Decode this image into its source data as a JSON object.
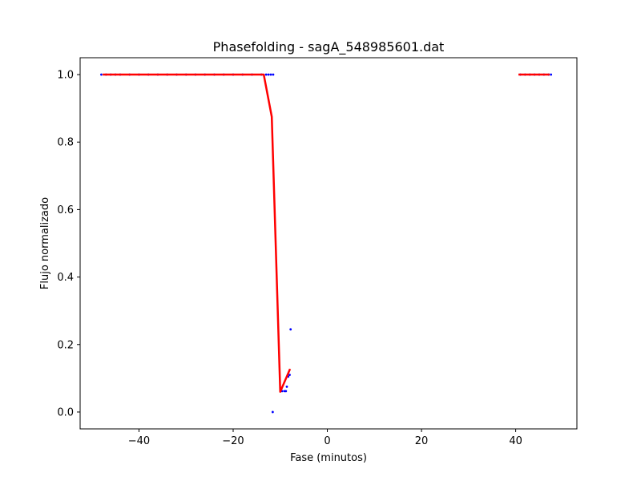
{
  "chart_data": {
    "type": "scatter",
    "title": "Phasefolding - sagA_548985601.dat",
    "xlabel": "Fase (minutos)",
    "ylabel": "Flujo normalizado",
    "xlim": [
      -52.5,
      53
    ],
    "ylim": [
      -0.05,
      1.05
    ],
    "xticks": [
      -40,
      -20,
      0,
      20,
      40
    ],
    "xtick_labels": [
      "−40",
      "−20",
      "0",
      "20",
      "40"
    ],
    "yticks": [
      0.0,
      0.2,
      0.4,
      0.6,
      0.8,
      1.0
    ],
    "ytick_labels": [
      "0.0",
      "0.2",
      "0.4",
      "0.6",
      "0.8",
      "1.0"
    ],
    "grid": false,
    "legend": "none",
    "series": [
      {
        "kind": "scatter",
        "color": "#0000ff",
        "points": [
          [
            -48.0,
            1.0
          ],
          [
            -47.0,
            1.0
          ],
          [
            -46.0,
            1.0
          ],
          [
            -45.0,
            1.0
          ],
          [
            -44.0,
            1.0
          ],
          [
            -42.0,
            1.0
          ],
          [
            -40.0,
            1.0
          ],
          [
            -38.0,
            1.0
          ],
          [
            -36.0,
            1.0
          ],
          [
            -34.0,
            1.0
          ],
          [
            -32.0,
            1.0
          ],
          [
            -30.0,
            1.0
          ],
          [
            -28.0,
            1.0
          ],
          [
            -26.0,
            1.0
          ],
          [
            -24.0,
            1.0
          ],
          [
            -22.0,
            1.0
          ],
          [
            -20.0,
            1.0
          ],
          [
            -18.0,
            1.0
          ],
          [
            -16.0,
            1.0
          ],
          [
            -14.0,
            1.0
          ],
          [
            -13.0,
            1.0
          ],
          [
            -12.5,
            1.0
          ],
          [
            -12.0,
            1.0
          ],
          [
            -11.5,
            1.0
          ],
          [
            -11.6,
            0.0
          ],
          [
            -9.6,
            0.062
          ],
          [
            -9.1,
            0.062
          ],
          [
            -8.8,
            0.062
          ],
          [
            -8.6,
            0.075
          ],
          [
            -8.3,
            0.105
          ],
          [
            -8.0,
            0.11
          ],
          [
            -7.8,
            0.245
          ],
          [
            41.0,
            1.0
          ],
          [
            42.0,
            1.0
          ],
          [
            43.0,
            1.0
          ],
          [
            44.0,
            1.0
          ],
          [
            45.0,
            1.0
          ],
          [
            46.0,
            1.0
          ],
          [
            47.0,
            1.0
          ],
          [
            47.5,
            1.0
          ]
        ]
      },
      {
        "kind": "line",
        "color": "#ff0000",
        "segments": [
          [
            [
              -47.5,
              1.0
            ],
            [
              -13.5,
              1.0
            ],
            [
              -11.8,
              0.875
            ],
            [
              -10.0,
              0.06
            ],
            [
              -8.0,
              0.125
            ]
          ],
          [
            [
              40.8,
              1.0
            ],
            [
              47.0,
              1.0
            ]
          ]
        ]
      }
    ]
  }
}
